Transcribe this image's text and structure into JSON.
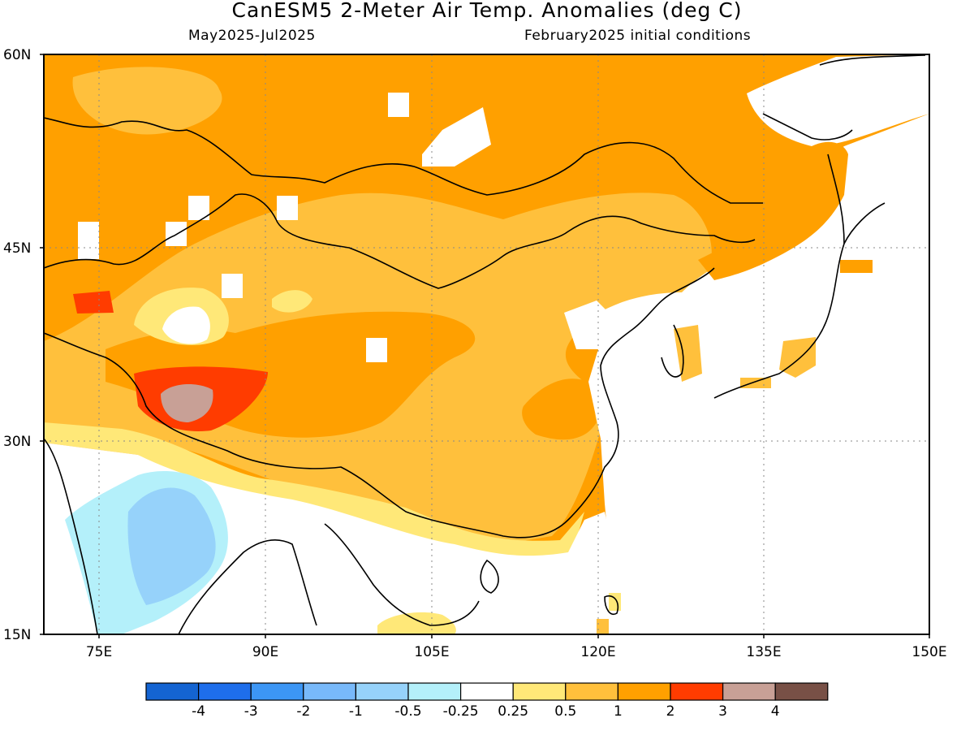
{
  "header": {
    "title": "CanESM5 2-Meter Air Temp. Anomalies (deg C)",
    "period": "May2025-Jul2025",
    "initial_conditions": "February2025 initial conditions"
  },
  "map": {
    "region": "East Asia",
    "lat_range": [
      15,
      60
    ],
    "lon_range": [
      70,
      150
    ],
    "lat_ticks": [
      "15N",
      "30N",
      "45N",
      "60N"
    ],
    "lon_ticks": [
      "75E",
      "90E",
      "105E",
      "120E",
      "135E",
      "150E"
    ]
  },
  "legend": {
    "bins": [
      {
        "color": "#1464d2"
      },
      {
        "color": "#1e6eeb"
      },
      {
        "color": "#3c96f5"
      },
      {
        "color": "#78b9fa"
      },
      {
        "color": "#96d2fa"
      },
      {
        "color": "#b4f0fa"
      },
      {
        "color": "#ffffff"
      },
      {
        "color": "#ffe878"
      },
      {
        "color": "#ffc03c"
      },
      {
        "color": "#ffa000"
      },
      {
        "color": "#ff3c00"
      },
      {
        "color": "#c8a096"
      },
      {
        "color": "#785046"
      }
    ],
    "labels": [
      "-4",
      "-3",
      "-2",
      "-1",
      "-0.5",
      "-0.25",
      "0.25",
      "0.5",
      "1",
      "2",
      "3",
      "4"
    ]
  }
}
